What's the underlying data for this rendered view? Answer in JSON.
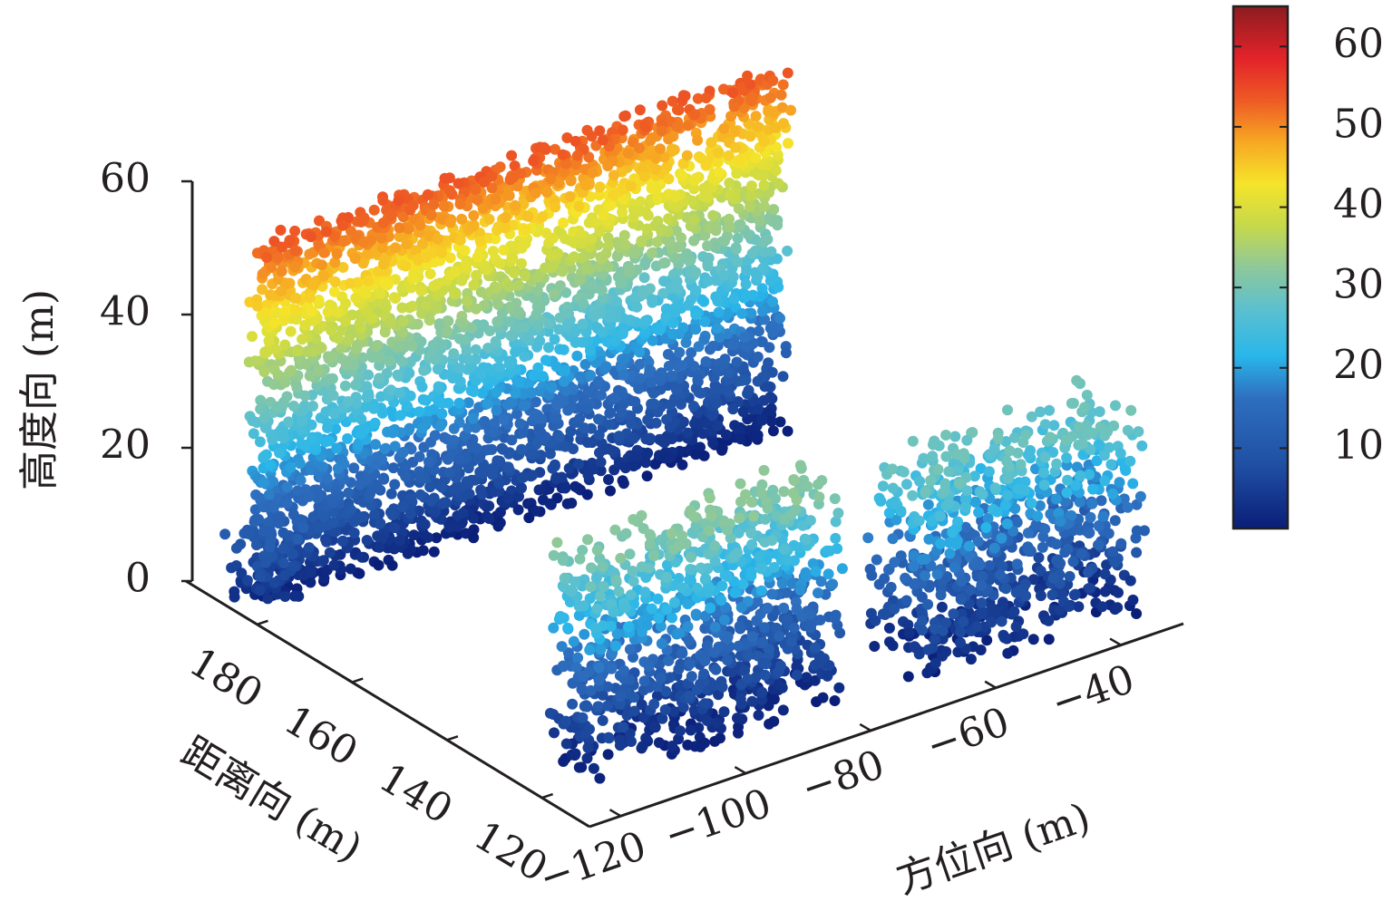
{
  "chart_data": {
    "type": "scatter",
    "dimensions": 3,
    "title": "",
    "xlabel": "方位向 (m)",
    "ylabel": "距离向 (m)",
    "zlabel": "高度向 (m)",
    "xlim": [
      -125,
      -30
    ],
    "ylim": [
      110,
      195
    ],
    "zlim": [
      0,
      60
    ],
    "x_ticks": [
      "−120",
      "−100",
      "−60",
      "−80",
      "−40"
    ],
    "x_tick_values": [
      -120,
      -100,
      -60,
      -80,
      -40
    ],
    "y_ticks": [
      "180",
      "160",
      "140",
      "120"
    ],
    "y_tick_values": [
      180,
      160,
      140,
      120
    ],
    "z_ticks": [
      "60",
      "40",
      "20",
      "0"
    ],
    "z_tick_values": [
      60,
      40,
      20,
      0
    ],
    "grid": false,
    "colorbar": {
      "colormap": "jet",
      "range": [
        0,
        65
      ],
      "ticks": [
        "60",
        "50",
        "40",
        "30",
        "20",
        "10"
      ],
      "tick_values": [
        60,
        50,
        40,
        30,
        20,
        10
      ],
      "placement": "right"
    },
    "structures": [
      {
        "x": [
          -122,
          -38
        ],
        "y": [
          182,
          186
        ],
        "z": [
          0,
          54
        ]
      },
      {
        "x": [
          -118,
          -78
        ],
        "y": [
          118,
          128
        ],
        "z": [
          0,
          33
        ]
      },
      {
        "x": [
          -68,
          -32
        ],
        "y": [
          114,
          128
        ],
        "z": [
          0,
          30
        ]
      },
      {
        "x": [
          -126,
          -118
        ],
        "y": [
          178,
          186
        ],
        "z": [
          2,
          13
        ]
      }
    ]
  }
}
